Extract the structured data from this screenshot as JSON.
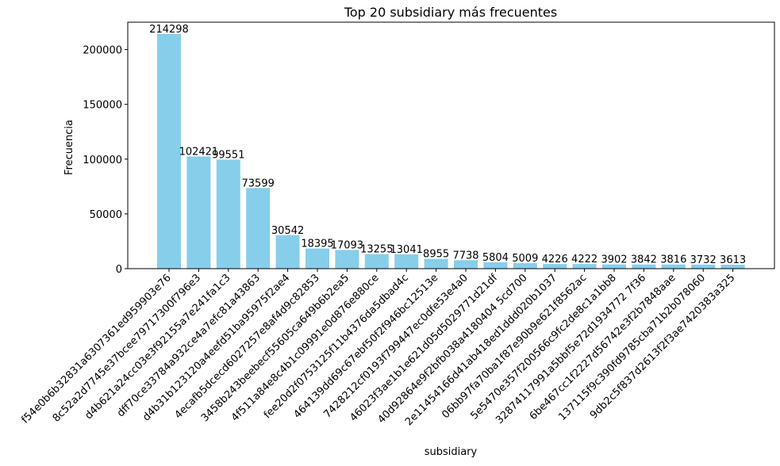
{
  "chart_data": {
    "type": "bar",
    "title": "Top 20 subsidiary más frecuentes",
    "xlabel": "subsidiary",
    "ylabel": "Frecuencia",
    "ylim": [
      0,
      225000
    ],
    "yticks": [
      0,
      50000,
      100000,
      150000,
      200000
    ],
    "ytick_labels": [
      "0",
      "50000",
      "100000",
      "150000",
      "200000"
    ],
    "grid": false,
    "bar_color": "#87ceeb",
    "categories": [
      "f54e0b6b32831a6307361ed959903e76",
      "8c52a2d7745e37bcee79717300f796e3",
      "d4b621a24cc03e3f92155a7e241fa1c3",
      "dff70ce33784a932ce4a7efc81a43863",
      "d4b31b123120a4eefd51ba95975f2ae4",
      "4ecafb5dcecd6027257e8af4d9c82853",
      "3458b243beebecf55605ca649b6b2ea5",
      "4f511a84e8c4b1c09991e0d876e880ce",
      "fee20d2f0753125f11b4376da5dbad4c",
      "464139dd69c67ebf50f2f946bc12513e",
      "7428212cf0193f799447ec0dfe53e4a0",
      "46023f3ae1b1e621d05d5029771d21df",
      "40d92864e9f2bfb038a4180404 5cd700",
      "2e11454166d41ab418ed1ddd020b1037",
      "06bb97fa70ba1f87e90b9e621f8562ac",
      "5e5470e357f200566c9fc2de8c1a1bb8",
      "32874117991a5bbf5e72d1934772 7f36",
      "6be467cc1f2227d56742e3f2b7848aae",
      "137115f9c390fd9785cba71b2b078060",
      "9db2c5f837d2613f2f3ae7420383a325"
    ],
    "values": [
      214298,
      102421,
      99551,
      73599,
      30542,
      18395,
      17093,
      13255,
      13041,
      8955,
      7738,
      5804,
      5009,
      4226,
      4222,
      3902,
      3842,
      3816,
      3732,
      3613
    ]
  }
}
